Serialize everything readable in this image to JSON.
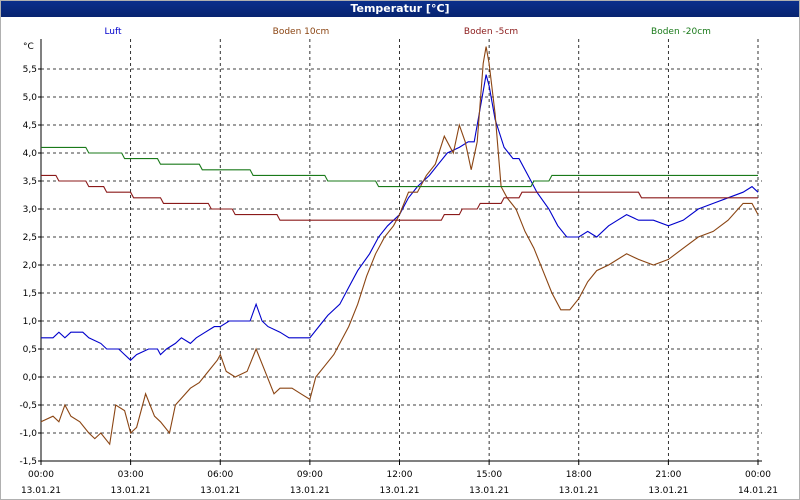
{
  "window": {
    "title": "Temperatur [°C]"
  },
  "chart_data": {
    "type": "line",
    "title": "Temperatur [°C]",
    "ylabel": "°C",
    "ylim": [
      -1.5,
      6.0
    ],
    "yticks": [
      "-1,5",
      "-1,0",
      "-0,5",
      "0,0",
      "0,5",
      "1,0",
      "1,5",
      "2,0",
      "2,5",
      "3,0",
      "3,5",
      "4,0",
      "4,5",
      "5,0",
      "5,5"
    ],
    "ytick_values": [
      -1.5,
      -1.0,
      -0.5,
      0.0,
      0.5,
      1.0,
      1.5,
      2.0,
      2.5,
      3.0,
      3.5,
      4.0,
      4.5,
      5.0,
      5.5
    ],
    "xlim_hours": [
      0,
      24
    ],
    "xticks": [
      {
        "time": "00:00",
        "date": "13.01.21"
      },
      {
        "time": "03:00",
        "date": "13.01.21"
      },
      {
        "time": "06:00",
        "date": "13.01.21"
      },
      {
        "time": "09:00",
        "date": "13.01.21"
      },
      {
        "time": "12:00",
        "date": "13.01.21"
      },
      {
        "time": "15:00",
        "date": "13.01.21"
      },
      {
        "time": "18:00",
        "date": "13.01.21"
      },
      {
        "time": "21:00",
        "date": "13.01.21"
      },
      {
        "time": "00:00",
        "date": "14.01.21"
      }
    ],
    "grid": true,
    "legend": "top",
    "series": [
      {
        "name": "Luft",
        "color": "#0000cc",
        "points": [
          [
            0,
            0.7
          ],
          [
            0.4,
            0.7
          ],
          [
            0.6,
            0.8
          ],
          [
            0.8,
            0.7
          ],
          [
            1.0,
            0.8
          ],
          [
            1.4,
            0.8
          ],
          [
            1.6,
            0.7
          ],
          [
            2.0,
            0.6
          ],
          [
            2.2,
            0.5
          ],
          [
            2.6,
            0.5
          ],
          [
            2.8,
            0.4
          ],
          [
            3.0,
            0.3
          ],
          [
            3.2,
            0.4
          ],
          [
            3.6,
            0.5
          ],
          [
            3.9,
            0.5
          ],
          [
            4.0,
            0.4
          ],
          [
            4.2,
            0.5
          ],
          [
            4.5,
            0.6
          ],
          [
            4.7,
            0.7
          ],
          [
            5.0,
            0.6
          ],
          [
            5.2,
            0.7
          ],
          [
            5.5,
            0.8
          ],
          [
            5.8,
            0.9
          ],
          [
            6.0,
            0.9
          ],
          [
            6.3,
            1.0
          ],
          [
            6.5,
            1.0
          ],
          [
            7.0,
            1.0
          ],
          [
            7.2,
            1.3
          ],
          [
            7.4,
            1.0
          ],
          [
            7.6,
            0.9
          ],
          [
            8.0,
            0.8
          ],
          [
            8.3,
            0.7
          ],
          [
            8.5,
            0.7
          ],
          [
            9.0,
            0.7
          ],
          [
            9.3,
            0.9
          ],
          [
            9.6,
            1.1
          ],
          [
            10.0,
            1.3
          ],
          [
            10.3,
            1.6
          ],
          [
            10.6,
            1.9
          ],
          [
            11.0,
            2.2
          ],
          [
            11.3,
            2.5
          ],
          [
            11.6,
            2.7
          ],
          [
            12.0,
            2.9
          ],
          [
            12.3,
            3.2
          ],
          [
            12.6,
            3.4
          ],
          [
            13.0,
            3.6
          ],
          [
            13.3,
            3.8
          ],
          [
            13.6,
            4.0
          ],
          [
            14.0,
            4.1
          ],
          [
            14.3,
            4.2
          ],
          [
            14.5,
            4.2
          ],
          [
            14.7,
            4.8
          ],
          [
            14.9,
            5.4
          ],
          [
            15.0,
            5.2
          ],
          [
            15.2,
            4.6
          ],
          [
            15.5,
            4.1
          ],
          [
            15.8,
            3.9
          ],
          [
            16.0,
            3.9
          ],
          [
            16.3,
            3.6
          ],
          [
            16.6,
            3.3
          ],
          [
            17.0,
            3.0
          ],
          [
            17.3,
            2.7
          ],
          [
            17.6,
            2.5
          ],
          [
            18.0,
            2.5
          ],
          [
            18.3,
            2.6
          ],
          [
            18.6,
            2.5
          ],
          [
            19.0,
            2.7
          ],
          [
            19.3,
            2.8
          ],
          [
            19.6,
            2.9
          ],
          [
            20.0,
            2.8
          ],
          [
            20.5,
            2.8
          ],
          [
            21.0,
            2.7
          ],
          [
            21.5,
            2.8
          ],
          [
            22.0,
            3.0
          ],
          [
            22.5,
            3.1
          ],
          [
            23.0,
            3.2
          ],
          [
            23.5,
            3.3
          ],
          [
            23.8,
            3.4
          ],
          [
            24.0,
            3.3
          ]
        ]
      },
      {
        "name": "Boden 10cm",
        "color": "#8b4513",
        "points": [
          [
            0,
            -0.8
          ],
          [
            0.4,
            -0.7
          ],
          [
            0.6,
            -0.8
          ],
          [
            0.8,
            -0.5
          ],
          [
            1.0,
            -0.7
          ],
          [
            1.3,
            -0.8
          ],
          [
            1.6,
            -1.0
          ],
          [
            1.8,
            -1.1
          ],
          [
            2.0,
            -1.0
          ],
          [
            2.3,
            -1.2
          ],
          [
            2.5,
            -0.5
          ],
          [
            2.8,
            -0.6
          ],
          [
            3.0,
            -1.0
          ],
          [
            3.2,
            -0.9
          ],
          [
            3.5,
            -0.3
          ],
          [
            3.8,
            -0.7
          ],
          [
            4.0,
            -0.8
          ],
          [
            4.3,
            -1.0
          ],
          [
            4.5,
            -0.5
          ],
          [
            5.0,
            -0.2
          ],
          [
            5.3,
            -0.1
          ],
          [
            5.6,
            0.1
          ],
          [
            5.9,
            0.3
          ],
          [
            6.0,
            0.4
          ],
          [
            6.2,
            0.1
          ],
          [
            6.5,
            0.0
          ],
          [
            6.9,
            0.1
          ],
          [
            7.2,
            0.5
          ],
          [
            7.5,
            0.1
          ],
          [
            7.8,
            -0.3
          ],
          [
            8.0,
            -0.2
          ],
          [
            8.4,
            -0.2
          ],
          [
            8.7,
            -0.3
          ],
          [
            9.0,
            -0.4
          ],
          [
            9.2,
            0.0
          ],
          [
            9.5,
            0.2
          ],
          [
            9.8,
            0.4
          ],
          [
            10.0,
            0.6
          ],
          [
            10.3,
            0.9
          ],
          [
            10.6,
            1.3
          ],
          [
            10.9,
            1.8
          ],
          [
            11.2,
            2.2
          ],
          [
            11.5,
            2.5
          ],
          [
            11.8,
            2.7
          ],
          [
            12.0,
            2.9
          ],
          [
            12.3,
            3.3
          ],
          [
            12.6,
            3.3
          ],
          [
            12.9,
            3.6
          ],
          [
            13.2,
            3.8
          ],
          [
            13.5,
            4.3
          ],
          [
            13.8,
            4.0
          ],
          [
            14.0,
            4.5
          ],
          [
            14.2,
            4.2
          ],
          [
            14.4,
            3.7
          ],
          [
            14.6,
            4.2
          ],
          [
            14.8,
            5.6
          ],
          [
            14.9,
            5.9
          ],
          [
            15.0,
            5.6
          ],
          [
            15.2,
            4.7
          ],
          [
            15.4,
            3.4
          ],
          [
            15.6,
            3.2
          ],
          [
            15.9,
            3.0
          ],
          [
            16.2,
            2.6
          ],
          [
            16.5,
            2.3
          ],
          [
            16.8,
            1.9
          ],
          [
            17.1,
            1.5
          ],
          [
            17.4,
            1.2
          ],
          [
            17.7,
            1.2
          ],
          [
            18.0,
            1.4
          ],
          [
            18.3,
            1.7
          ],
          [
            18.6,
            1.9
          ],
          [
            19.0,
            2.0
          ],
          [
            19.3,
            2.1
          ],
          [
            19.6,
            2.2
          ],
          [
            20.0,
            2.1
          ],
          [
            20.5,
            2.0
          ],
          [
            21.0,
            2.1
          ],
          [
            21.5,
            2.3
          ],
          [
            22.0,
            2.5
          ],
          [
            22.5,
            2.6
          ],
          [
            23.0,
            2.8
          ],
          [
            23.5,
            3.1
          ],
          [
            23.8,
            3.1
          ],
          [
            24.0,
            2.9
          ]
        ]
      },
      {
        "name": "Boden -5cm",
        "color": "#8b1a1a",
        "points": [
          [
            0,
            3.6
          ],
          [
            0.5,
            3.6
          ],
          [
            0.6,
            3.5
          ],
          [
            1.5,
            3.5
          ],
          [
            1.6,
            3.4
          ],
          [
            2.1,
            3.4
          ],
          [
            2.2,
            3.3
          ],
          [
            3.0,
            3.3
          ],
          [
            3.1,
            3.2
          ],
          [
            4.0,
            3.2
          ],
          [
            4.1,
            3.1
          ],
          [
            5.6,
            3.1
          ],
          [
            5.7,
            3.0
          ],
          [
            6.4,
            3.0
          ],
          [
            6.5,
            2.9
          ],
          [
            7.9,
            2.9
          ],
          [
            8.0,
            2.8
          ],
          [
            11.8,
            2.8
          ],
          [
            11.9,
            2.8
          ],
          [
            13.4,
            2.8
          ],
          [
            13.5,
            2.9
          ],
          [
            14.0,
            2.9
          ],
          [
            14.1,
            3.0
          ],
          [
            14.6,
            3.0
          ],
          [
            14.7,
            3.1
          ],
          [
            15.4,
            3.1
          ],
          [
            15.5,
            3.2
          ],
          [
            16.0,
            3.2
          ],
          [
            16.1,
            3.3
          ],
          [
            20.0,
            3.3
          ],
          [
            20.1,
            3.2
          ],
          [
            24.0,
            3.2
          ]
        ]
      },
      {
        "name": "Boden -20cm",
        "color": "#1a7a1a",
        "points": [
          [
            0,
            4.1
          ],
          [
            1.5,
            4.1
          ],
          [
            1.6,
            4.0
          ],
          [
            2.7,
            4.0
          ],
          [
            2.8,
            3.9
          ],
          [
            3.9,
            3.9
          ],
          [
            4.0,
            3.8
          ],
          [
            5.3,
            3.8
          ],
          [
            5.4,
            3.7
          ],
          [
            7.0,
            3.7
          ],
          [
            7.1,
            3.6
          ],
          [
            9.5,
            3.6
          ],
          [
            9.6,
            3.5
          ],
          [
            11.2,
            3.5
          ],
          [
            11.3,
            3.4
          ],
          [
            16.4,
            3.4
          ],
          [
            16.5,
            3.5
          ],
          [
            17.0,
            3.5
          ],
          [
            17.1,
            3.6
          ],
          [
            24.0,
            3.6
          ]
        ]
      }
    ]
  }
}
